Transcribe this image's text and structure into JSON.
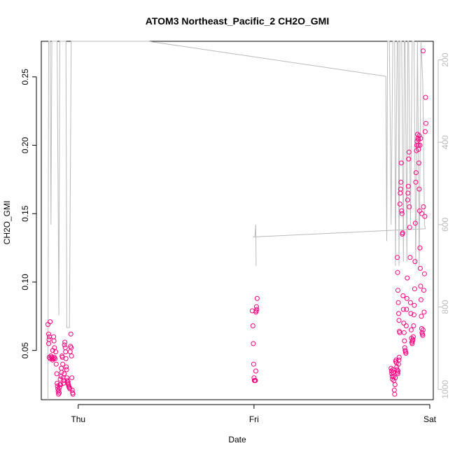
{
  "chart_data": {
    "type": "scatter",
    "title": "ATOM3 Northeast_Pacific_2 CH2O_GMI",
    "xlabel": "Date",
    "ylabel": "CH2O_GMI",
    "x_ticks": [
      "Thu",
      "Fri",
      "Sat"
    ],
    "xlim": [
      -0.21,
      2.02
    ],
    "ylim": [
      0.014,
      0.276
    ],
    "y_ticks": [
      "0.05",
      "0.10",
      "0.15",
      "0.20",
      "0.25"
    ],
    "y_tick_values": [
      0.05,
      0.1,
      0.15,
      0.2,
      0.25
    ],
    "right_axis": {
      "label": "",
      "reversed": true,
      "lim": [
        1025,
        155
      ],
      "ticks": [
        "200",
        "400",
        "600",
        "800",
        "1000"
      ],
      "tick_values": [
        200,
        400,
        600,
        800,
        1000
      ],
      "color": "#bbbbbb"
    },
    "grid": false,
    "legend": "none",
    "colors": {
      "points": "#ff0080",
      "line": "#bbbbbb",
      "axis": "#000000"
    },
    "series": [
      {
        "values": [
          [
            -0.172,
            0.069
          ],
          [
            -0.168,
            0.062
          ],
          [
            -0.166,
            0.058
          ],
          [
            -0.164,
            0.06
          ],
          [
            -0.16,
            0.071
          ],
          [
            -0.168,
            0.055
          ],
          [
            -0.165,
            0.045
          ],
          [
            -0.16,
            0.044
          ],
          [
            -0.155,
            0.046
          ],
          [
            -0.15,
            0.045
          ],
          [
            -0.145,
            0.05
          ],
          [
            -0.142,
            0.044
          ],
          [
            -0.14,
            0.06
          ],
          [
            -0.138,
            0.057
          ],
          [
            -0.135,
            0.052
          ],
          [
            -0.132,
            0.044
          ],
          [
            -0.128,
            0.049
          ],
          [
            -0.125,
            0.04
          ],
          [
            -0.122,
            0.033
          ],
          [
            -0.12,
            0.026
          ],
          [
            -0.118,
            0.024
          ],
          [
            -0.116,
            0.022
          ],
          [
            -0.114,
            0.02
          ],
          [
            -0.112,
            0.018
          ],
          [
            -0.11,
            0.021
          ],
          [
            -0.108,
            0.019
          ],
          [
            -0.106,
            0.023
          ],
          [
            -0.104,
            0.025
          ],
          [
            -0.102,
            0.029
          ],
          [
            -0.1,
            0.025
          ],
          [
            -0.098,
            0.031
          ],
          [
            -0.096,
            0.037
          ],
          [
            -0.094,
            0.034
          ],
          [
            -0.092,
            0.046
          ],
          [
            -0.09,
            0.045
          ],
          [
            -0.088,
            0.04
          ],
          [
            -0.086,
            0.03
          ],
          [
            -0.084,
            0.026
          ],
          [
            -0.082,
            0.028
          ],
          [
            -0.08,
            0.033
          ],
          [
            -0.078,
            0.054
          ],
          [
            -0.076,
            0.056
          ],
          [
            -0.074,
            0.052
          ],
          [
            -0.072,
            0.049
          ],
          [
            -0.07,
            0.044
          ],
          [
            -0.068,
            0.038
          ],
          [
            -0.066,
            0.036
          ],
          [
            -0.064,
            0.03
          ],
          [
            -0.062,
            0.028
          ],
          [
            -0.06,
            0.026
          ],
          [
            -0.058,
            0.027
          ],
          [
            -0.056,
            0.025
          ],
          [
            -0.054,
            0.024
          ],
          [
            -0.052,
            0.023
          ],
          [
            -0.05,
            0.023
          ],
          [
            -0.048,
            0.022
          ],
          [
            -0.046,
            0.049
          ],
          [
            -0.044,
            0.053
          ],
          [
            -0.042,
            0.062
          ],
          [
            -0.04,
            0.052
          ],
          [
            -0.038,
            0.046
          ],
          [
            -0.036,
            0.03
          ],
          [
            -0.034,
            0.021
          ],
          [
            -0.032,
            0.019
          ],
          [
            -0.03,
            0.018
          ],
          [
            -0.15,
            0.044
          ],
          [
            -0.146,
            0.043
          ],
          [
            -0.141,
            0.044
          ],
          [
            -0.136,
            0.045
          ],
          [
            0.99,
            0.079
          ],
          [
            0.994,
            0.068
          ],
          [
            0.996,
            0.055
          ],
          [
            0.998,
            0.04
          ],
          [
            1.0,
            0.03
          ],
          [
            1.002,
            0.028
          ],
          [
            1.004,
            0.028
          ],
          [
            1.006,
            0.028
          ],
          [
            1.008,
            0.028
          ],
          [
            1.01,
            0.035
          ],
          [
            1.012,
            0.079
          ],
          [
            1.014,
            0.082
          ],
          [
            1.016,
            0.08
          ],
          [
            1.018,
            0.088
          ],
          [
            1.011,
            0.078
          ],
          [
            1.78,
            0.037
          ],
          [
            1.782,
            0.035
          ],
          [
            1.784,
            0.033
          ],
          [
            1.786,
            0.031
          ],
          [
            1.788,
            0.029
          ],
          [
            1.79,
            0.036
          ],
          [
            1.792,
            0.034
          ],
          [
            1.794,
            0.031
          ],
          [
            1.796,
            0.028
          ],
          [
            1.798,
            0.021
          ],
          [
            1.8,
            0.018
          ],
          [
            1.802,
            0.025
          ],
          [
            1.804,
            0.03
          ],
          [
            1.806,
            0.042
          ],
          [
            1.808,
            0.043
          ],
          [
            1.81,
            0.041
          ],
          [
            1.812,
            0.038
          ],
          [
            1.814,
            0.036
          ],
          [
            1.816,
            0.034
          ],
          [
            1.818,
            0.033
          ],
          [
            1.82,
            0.035
          ],
          [
            1.822,
            0.04
          ],
          [
            1.824,
            0.043
          ],
          [
            1.826,
            0.045
          ],
          [
            1.815,
            0.118
          ],
          [
            1.817,
            0.107
          ],
          [
            1.819,
            0.094
          ],
          [
            1.821,
            0.085
          ],
          [
            1.823,
            0.077
          ],
          [
            1.825,
            0.072
          ],
          [
            1.827,
            0.064
          ],
          [
            1.829,
            0.063
          ],
          [
            1.83,
            0.157
          ],
          [
            1.832,
            0.165
          ],
          [
            1.834,
            0.168
          ],
          [
            1.836,
            0.173
          ],
          [
            1.838,
            0.187
          ],
          [
            1.84,
            0.152
          ],
          [
            1.842,
            0.15
          ],
          [
            1.844,
            0.135
          ],
          [
            1.846,
            0.136
          ],
          [
            1.848,
            0.09
          ],
          [
            1.85,
            0.08
          ],
          [
            1.852,
            0.07
          ],
          [
            1.854,
            0.063
          ],
          [
            1.856,
            0.057
          ],
          [
            1.858,
            0.052
          ],
          [
            1.86,
            0.05
          ],
          [
            1.862,
            0.049
          ],
          [
            1.864,
            0.048
          ],
          [
            1.866,
            0.068
          ],
          [
            1.868,
            0.08
          ],
          [
            1.87,
            0.088
          ],
          [
            1.872,
            0.103
          ],
          [
            1.874,
            0.16
          ],
          [
            1.876,
            0.165
          ],
          [
            1.878,
            0.17
          ],
          [
            1.88,
            0.19
          ],
          [
            1.882,
            0.195
          ],
          [
            1.884,
            0.155
          ],
          [
            1.886,
            0.14
          ],
          [
            1.888,
            0.118
          ],
          [
            1.89,
            0.085
          ],
          [
            1.892,
            0.077
          ],
          [
            1.894,
            0.065
          ],
          [
            1.896,
            0.059
          ],
          [
            1.898,
            0.056
          ],
          [
            1.9,
            0.055
          ],
          [
            1.902,
            0.057
          ],
          [
            1.904,
            0.058
          ],
          [
            1.906,
            0.06
          ],
          [
            1.908,
            0.068
          ],
          [
            1.91,
            0.076
          ],
          [
            1.912,
            0.083
          ],
          [
            1.914,
            0.095
          ],
          [
            1.916,
            0.115
          ],
          [
            1.918,
            0.143
          ],
          [
            1.92,
            0.173
          ],
          [
            1.922,
            0.18
          ],
          [
            1.924,
            0.196
          ],
          [
            1.926,
            0.2
          ],
          [
            1.928,
            0.203
          ],
          [
            1.93,
            0.208
          ],
          [
            1.932,
            0.205
          ],
          [
            1.934,
            0.2
          ],
          [
            1.936,
            0.197
          ],
          [
            1.938,
            0.187
          ],
          [
            1.94,
            0.168
          ],
          [
            1.942,
            0.152
          ],
          [
            1.944,
            0.125
          ],
          [
            1.946,
            0.11
          ],
          [
            1.948,
            0.097
          ],
          [
            1.95,
            0.087
          ],
          [
            1.952,
            0.075
          ],
          [
            1.954,
            0.066
          ],
          [
            1.956,
            0.063
          ],
          [
            1.958,
            0.062
          ],
          [
            1.96,
            0.061
          ],
          [
            1.962,
            0.065
          ],
          [
            1.964,
            0.155
          ],
          [
            1.966,
            0.094
          ],
          [
            1.968,
            0.078
          ],
          [
            1.97,
            0.106
          ],
          [
            1.972,
            0.148
          ],
          [
            1.974,
            0.21
          ],
          [
            1.976,
            0.235
          ],
          [
            1.978,
            0.216
          ],
          [
            1.962,
            0.269
          ],
          [
            1.955,
            0.15
          ],
          [
            1.948,
            0.205
          ],
          [
            1.944,
            0.2
          ],
          [
            1.94,
            0.207
          ],
          [
            1.936,
            0.204
          ]
        ]
      }
    ],
    "line_series": {
      "values": [
        [
          -0.172,
          1025
        ],
        [
          -0.17,
          600
        ],
        [
          -0.168,
          155
        ],
        [
          -0.16,
          155
        ],
        [
          -0.155,
          600
        ],
        [
          -0.15,
          155
        ],
        [
          -0.14,
          155
        ],
        [
          -0.12,
          155
        ],
        [
          -0.11,
          820
        ],
        [
          -0.105,
          155
        ],
        [
          -0.09,
          155
        ],
        [
          -0.07,
          155
        ],
        [
          -0.065,
          850
        ],
        [
          -0.055,
          850
        ],
        [
          -0.05,
          850
        ],
        [
          -0.04,
          155
        ],
        [
          -0.03,
          155
        ],
        [
          0.4,
          155
        ],
        [
          1.75,
          240
        ],
        [
          1.755,
          640
        ],
        [
          1.76,
          155
        ],
        [
          1.77,
          155
        ],
        [
          1.775,
          350
        ],
        [
          1.78,
          600
        ],
        [
          1.79,
          155
        ],
        [
          1.8,
          155
        ],
        [
          1.805,
          700
        ],
        [
          1.81,
          350
        ],
        [
          1.815,
          155
        ],
        [
          1.82,
          155
        ],
        [
          1.825,
          700
        ],
        [
          1.83,
          155
        ],
        [
          1.84,
          155
        ],
        [
          1.85,
          690
        ],
        [
          1.855,
          155
        ],
        [
          1.86,
          155
        ],
        [
          1.87,
          690
        ],
        [
          1.875,
          155
        ],
        [
          1.88,
          155
        ],
        [
          1.89,
          600
        ],
        [
          1.9,
          155
        ],
        [
          1.91,
          155
        ],
        [
          1.92,
          700
        ],
        [
          1.93,
          155
        ],
        [
          1.94,
          700
        ],
        [
          1.95,
          155
        ],
        [
          1.96,
          250
        ],
        [
          1.97,
          600
        ],
        [
          1.975,
          610
        ],
        [
          0.995,
          630
        ],
        [
          1.005,
          630
        ],
        [
          1.01,
          600
        ],
        [
          1.012,
          700
        ]
      ]
    }
  }
}
